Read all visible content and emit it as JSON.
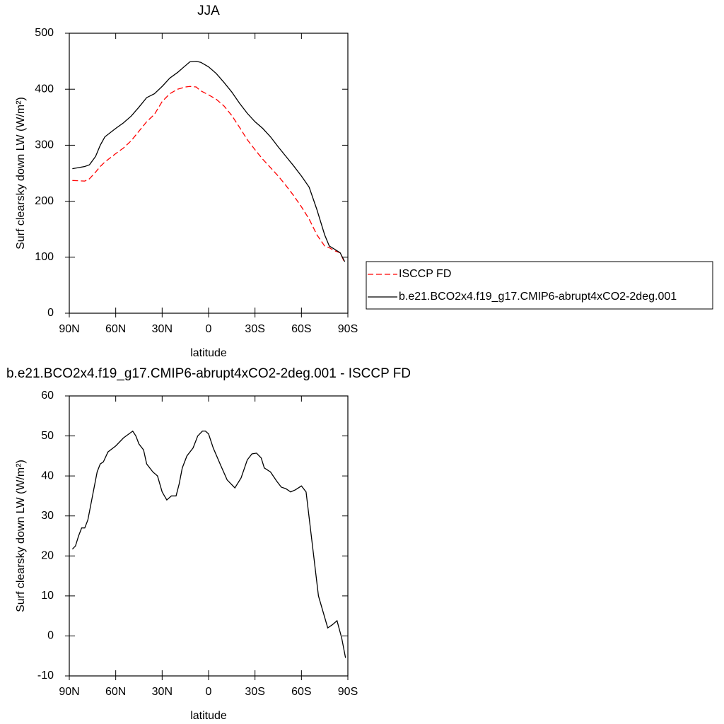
{
  "chart_data": [
    {
      "type": "line",
      "title": "JJA",
      "xlabel": "latitude",
      "ylabel": "Surf clearsky down LW (W/m²)",
      "xlim": [
        90,
        -90
      ],
      "ylim": [
        0,
        500
      ],
      "xticks": [
        {
          "value": 90,
          "label": "90N"
        },
        {
          "value": 60,
          "label": "60N"
        },
        {
          "value": 30,
          "label": "30N"
        },
        0,
        {
          "value": -30,
          "label": "30S"
        },
        {
          "value": -60,
          "label": "60S"
        },
        {
          "value": -90,
          "label": "90S"
        }
      ],
      "yticks": [
        0,
        100,
        200,
        300,
        400,
        500
      ],
      "legend": "right",
      "x": [
        88,
        80,
        77,
        73,
        70,
        67,
        60,
        55,
        50,
        45,
        40,
        35,
        30,
        25,
        20,
        15,
        12,
        8,
        5,
        0,
        -5,
        -10,
        -15,
        -20,
        -25,
        -30,
        -35,
        -40,
        -45,
        -50,
        -55,
        -60,
        -65,
        -70,
        -75,
        -78,
        -81,
        -85,
        -88
      ],
      "series": [
        {
          "name": "ISCCP FD",
          "color": "#ff0000",
          "style": "dashed",
          "values": [
            237,
            236,
            240,
            252,
            262,
            270,
            285,
            295,
            308,
            325,
            342,
            355,
            378,
            392,
            400,
            404,
            405,
            404,
            397,
            390,
            382,
            370,
            353,
            332,
            310,
            292,
            275,
            260,
            245,
            228,
            210,
            190,
            168,
            140,
            120,
            117,
            112,
            108,
            90
          ]
        },
        {
          "name": "b.e21.BCO2x4.f19_g17.CMIP6-abrupt4xCO2-2deg.001",
          "color": "#000000",
          "style": "solid",
          "values": [
            258,
            262,
            265,
            280,
            300,
            315,
            330,
            340,
            352,
            368,
            385,
            392,
            405,
            420,
            430,
            442,
            449,
            450,
            448,
            440,
            428,
            412,
            395,
            375,
            357,
            342,
            330,
            315,
            297,
            280,
            263,
            245,
            225,
            185,
            140,
            120,
            115,
            108,
            92
          ]
        }
      ]
    },
    {
      "type": "line",
      "title": "b.e21.BCO2x4.f19_g17.CMIP6-abrupt4xCO2-2deg.001 - ISCCP FD",
      "xlabel": "latitude",
      "ylabel": "Surf clearsky down LW (W/m²)",
      "xlim": [
        90,
        -90
      ],
      "ylim": [
        -10,
        60
      ],
      "xticks": [
        {
          "value": 90,
          "label": "90N"
        },
        {
          "value": 60,
          "label": "60N"
        },
        {
          "value": 30,
          "label": "30N"
        },
        0,
        {
          "value": -30,
          "label": "30S"
        },
        {
          "value": -60,
          "label": "60S"
        },
        {
          "value": -90,
          "label": "90S"
        }
      ],
      "yticks": [
        -10,
        0,
        10,
        20,
        30,
        40,
        50,
        60
      ],
      "x": [
        88,
        86,
        84,
        82,
        80,
        78,
        75,
        72,
        70,
        68,
        65,
        60,
        55,
        49,
        47,
        45,
        42,
        40,
        36,
        33,
        30,
        27,
        24,
        21,
        19,
        17,
        14,
        10,
        7,
        4,
        2,
        0,
        -3,
        -8,
        -12,
        -17,
        -21,
        -25,
        -28,
        -31,
        -34,
        -36,
        -40,
        -44,
        -47,
        -50,
        -53,
        -56,
        -60,
        -63,
        -71,
        -77,
        -80,
        -83,
        -86,
        -88.5
      ],
      "series": [
        {
          "color": "#000000",
          "style": "solid",
          "values": [
            21.7,
            22.5,
            25,
            27,
            27,
            29,
            35,
            41,
            43,
            43.5,
            46,
            47.5,
            49.5,
            51.2,
            50,
            48,
            46.5,
            43,
            41,
            40,
            36,
            34,
            35,
            35,
            38,
            42,
            45,
            47,
            50,
            51.2,
            51.2,
            50.5,
            47,
            42.5,
            39,
            37,
            39.5,
            44,
            45.5,
            45.7,
            44.5,
            42,
            41,
            38.7,
            37.2,
            36.8,
            36,
            36.5,
            37.5,
            36,
            10,
            2,
            2.8,
            3.8,
            -0.5,
            -5.5
          ]
        }
      ]
    }
  ]
}
